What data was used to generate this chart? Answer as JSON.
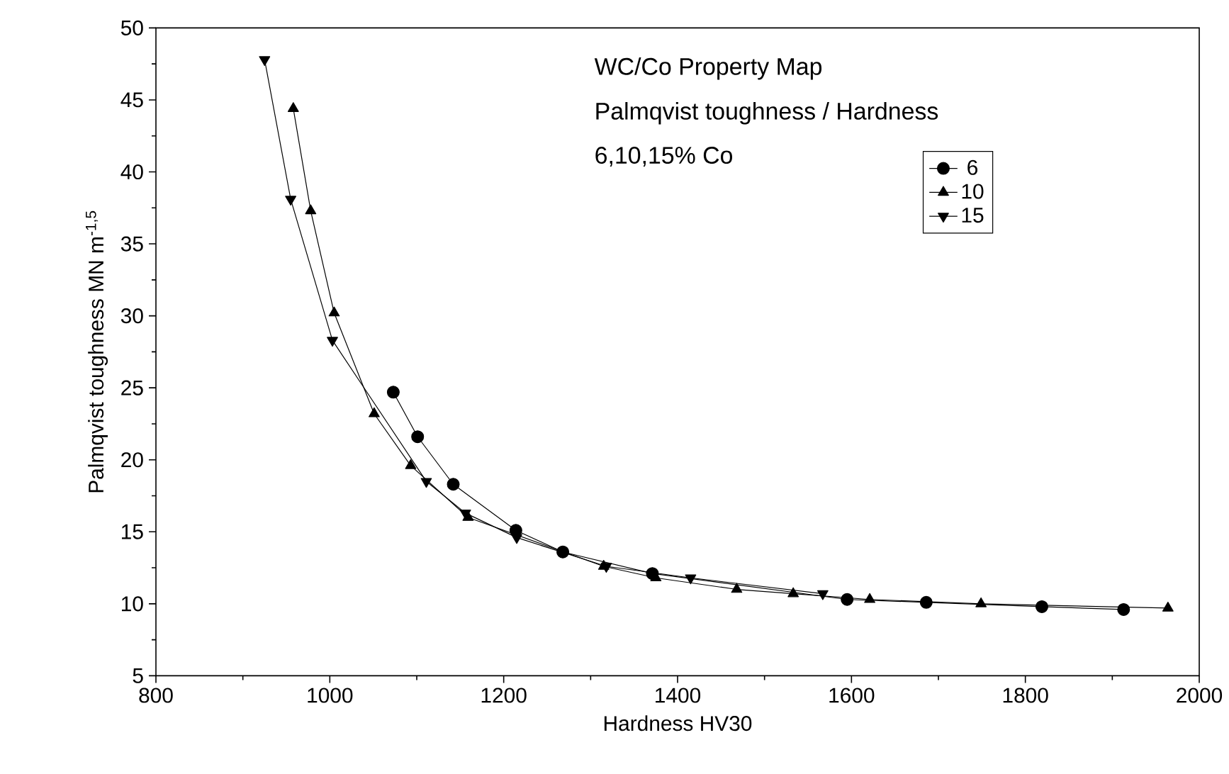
{
  "chart_data": {
    "type": "line",
    "title": "WC/Co Property Map",
    "subtitle": "Palmqvist toughness / Hardness",
    "annotations": [
      "6,10,15% Co"
    ],
    "xlabel": "Hardness  HV30",
    "ylabel": "Palmqvist toughness   MN m$^{-1,5}$",
    "series": [
      {
        "name": "6",
        "color": "#000000",
        "marker": "circle",
        "x": [
          1073,
          1101,
          1142,
          1214,
          1268,
          1371,
          1595,
          1686,
          1819,
          1913
        ],
        "values": [
          24.7,
          21.6,
          18.3,
          15.1,
          13.6,
          12.1,
          10.3,
          10.1,
          9.8,
          9.6
        ]
      },
      {
        "name": "10",
        "color": "#000000",
        "marker": "triangle",
        "x": [
          958,
          978,
          1005,
          1051,
          1093,
          1159,
          1315,
          1375,
          1468,
          1533,
          1621,
          1749,
          1964
        ],
        "values": [
          44.4,
          37.3,
          30.2,
          23.2,
          19.6,
          16.0,
          12.6,
          11.8,
          11.0,
          10.7,
          10.3,
          10.0,
          9.7
        ]
      },
      {
        "name": "15",
        "color": "#000000",
        "marker": "triangle down",
        "x": [
          925,
          955,
          1003,
          1111,
          1156,
          1215,
          1318,
          1415,
          1567
        ],
        "values": [
          47.8,
          38.1,
          28.3,
          18.5,
          16.3,
          14.6,
          12.6,
          11.8,
          10.7
        ]
      }
    ],
    "xlim": [
      800,
      2000
    ],
    "xticks": [
      800,
      1000,
      1200,
      1400,
      1600,
      1800,
      2000
    ],
    "ylim": [
      5,
      50
    ],
    "yticks": [
      5,
      10,
      15,
      20,
      25,
      30,
      35,
      40,
      45,
      50
    ],
    "grid": false,
    "legend": "top right",
    "line_style": "solid"
  }
}
